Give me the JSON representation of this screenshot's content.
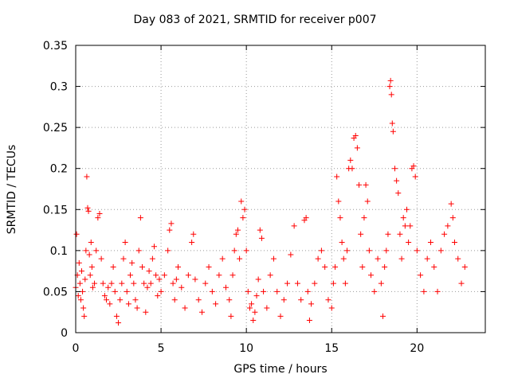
{
  "chart_data": {
    "type": "scatter",
    "title": "Day 083 of 2021, SRMTID for receiver p007",
    "xlabel": "GPS time / hours",
    "ylabel": "SRMTID / TECUs",
    "xlim": [
      0,
      24
    ],
    "ylim": [
      0,
      0.35
    ],
    "xticks": [
      0,
      5,
      10,
      15,
      20
    ],
    "xtick_labels": [
      "0",
      "5",
      "10",
      "15",
      "20"
    ],
    "yticks": [
      0,
      0.05,
      0.1,
      0.15,
      0.2,
      0.25,
      0.3,
      0.35
    ],
    "ytick_labels": [
      "0",
      "0.05",
      "0.1",
      "0.15",
      "0.2",
      "0.25",
      "0.3",
      "0.35"
    ],
    "grid": true,
    "marker": "+",
    "color": "#ff0000",
    "series": [
      {
        "name": "SRMTID",
        "points": [
          [
            0.0,
            0.055
          ],
          [
            0.05,
            0.12
          ],
          [
            0.1,
            0.07
          ],
          [
            0.15,
            0.045
          ],
          [
            0.2,
            0.085
          ],
          [
            0.25,
            0.06
          ],
          [
            0.3,
            0.04
          ],
          [
            0.35,
            0.075
          ],
          [
            0.4,
            0.05
          ],
          [
            0.45,
            0.03
          ],
          [
            0.5,
            0.02
          ],
          [
            0.55,
            0.065
          ],
          [
            0.6,
            0.1
          ],
          [
            0.65,
            0.19
          ],
          [
            0.7,
            0.152
          ],
          [
            0.75,
            0.148
          ],
          [
            0.8,
            0.095
          ],
          [
            0.85,
            0.07
          ],
          [
            0.9,
            0.11
          ],
          [
            0.95,
            0.08
          ],
          [
            1.0,
            0.055
          ],
          [
            1.1,
            0.06
          ],
          [
            1.2,
            0.1
          ],
          [
            1.3,
            0.14
          ],
          [
            1.4,
            0.145
          ],
          [
            1.5,
            0.09
          ],
          [
            1.6,
            0.06
          ],
          [
            1.7,
            0.045
          ],
          [
            1.8,
            0.04
          ],
          [
            1.9,
            0.055
          ],
          [
            2.0,
            0.035
          ],
          [
            2.1,
            0.06
          ],
          [
            2.2,
            0.08
          ],
          [
            2.3,
            0.05
          ],
          [
            2.4,
            0.02
          ],
          [
            2.5,
            0.012
          ],
          [
            2.6,
            0.04
          ],
          [
            2.7,
            0.06
          ],
          [
            2.8,
            0.09
          ],
          [
            2.9,
            0.11
          ],
          [
            3.0,
            0.05
          ],
          [
            3.1,
            0.035
          ],
          [
            3.2,
            0.07
          ],
          [
            3.3,
            0.085
          ],
          [
            3.4,
            0.06
          ],
          [
            3.5,
            0.04
          ],
          [
            3.6,
            0.03
          ],
          [
            3.7,
            0.1
          ],
          [
            3.8,
            0.14
          ],
          [
            3.9,
            0.08
          ],
          [
            4.0,
            0.06
          ],
          [
            4.1,
            0.025
          ],
          [
            4.2,
            0.055
          ],
          [
            4.3,
            0.075
          ],
          [
            4.4,
            0.06
          ],
          [
            4.5,
            0.09
          ],
          [
            4.6,
            0.105
          ],
          [
            4.7,
            0.07
          ],
          [
            4.8,
            0.045
          ],
          [
            4.9,
            0.065
          ],
          [
            5.0,
            0.05
          ],
          [
            5.2,
            0.07
          ],
          [
            5.4,
            0.1
          ],
          [
            5.5,
            0.125
          ],
          [
            5.6,
            0.133
          ],
          [
            5.7,
            0.06
          ],
          [
            5.8,
            0.04
          ],
          [
            5.9,
            0.065
          ],
          [
            6.0,
            0.08
          ],
          [
            6.2,
            0.055
          ],
          [
            6.4,
            0.03
          ],
          [
            6.6,
            0.07
          ],
          [
            6.8,
            0.11
          ],
          [
            6.9,
            0.12
          ],
          [
            7.0,
            0.065
          ],
          [
            7.2,
            0.04
          ],
          [
            7.4,
            0.025
          ],
          [
            7.6,
            0.06
          ],
          [
            7.8,
            0.08
          ],
          [
            8.0,
            0.05
          ],
          [
            8.2,
            0.035
          ],
          [
            8.4,
            0.07
          ],
          [
            8.6,
            0.09
          ],
          [
            8.8,
            0.055
          ],
          [
            9.0,
            0.04
          ],
          [
            9.1,
            0.02
          ],
          [
            9.2,
            0.07
          ],
          [
            9.3,
            0.1
          ],
          [
            9.4,
            0.12
          ],
          [
            9.5,
            0.125
          ],
          [
            9.6,
            0.09
          ],
          [
            9.7,
            0.16
          ],
          [
            9.8,
            0.14
          ],
          [
            9.9,
            0.15
          ],
          [
            10.0,
            0.1
          ],
          [
            10.1,
            0.05
          ],
          [
            10.2,
            0.03
          ],
          [
            10.3,
            0.035
          ],
          [
            10.4,
            0.015
          ],
          [
            10.5,
            0.025
          ],
          [
            10.6,
            0.045
          ],
          [
            10.7,
            0.065
          ],
          [
            10.8,
            0.125
          ],
          [
            10.9,
            0.115
          ],
          [
            11.0,
            0.05
          ],
          [
            11.2,
            0.03
          ],
          [
            11.4,
            0.07
          ],
          [
            11.6,
            0.09
          ],
          [
            11.8,
            0.05
          ],
          [
            12.0,
            0.02
          ],
          [
            12.2,
            0.04
          ],
          [
            12.4,
            0.06
          ],
          [
            12.6,
            0.095
          ],
          [
            12.8,
            0.13
          ],
          [
            13.0,
            0.06
          ],
          [
            13.2,
            0.04
          ],
          [
            13.4,
            0.137
          ],
          [
            13.5,
            0.14
          ],
          [
            13.6,
            0.05
          ],
          [
            13.7,
            0.015
          ],
          [
            13.8,
            0.035
          ],
          [
            14.0,
            0.06
          ],
          [
            14.2,
            0.09
          ],
          [
            14.4,
            0.1
          ],
          [
            14.6,
            0.08
          ],
          [
            14.8,
            0.04
          ],
          [
            15.0,
            0.03
          ],
          [
            15.1,
            0.06
          ],
          [
            15.2,
            0.08
          ],
          [
            15.3,
            0.19
          ],
          [
            15.4,
            0.16
          ],
          [
            15.5,
            0.14
          ],
          [
            15.6,
            0.11
          ],
          [
            15.7,
            0.09
          ],
          [
            15.8,
            0.06
          ],
          [
            15.9,
            0.1
          ],
          [
            16.0,
            0.2
          ],
          [
            16.1,
            0.21
          ],
          [
            16.2,
            0.2
          ],
          [
            16.3,
            0.237
          ],
          [
            16.4,
            0.24
          ],
          [
            16.5,
            0.225
          ],
          [
            16.6,
            0.18
          ],
          [
            16.7,
            0.12
          ],
          [
            16.8,
            0.08
          ],
          [
            16.9,
            0.14
          ],
          [
            17.0,
            0.18
          ],
          [
            17.1,
            0.16
          ],
          [
            17.2,
            0.1
          ],
          [
            17.3,
            0.07
          ],
          [
            17.5,
            0.05
          ],
          [
            17.7,
            0.09
          ],
          [
            17.9,
            0.06
          ],
          [
            18.0,
            0.02
          ],
          [
            18.1,
            0.08
          ],
          [
            18.2,
            0.1
          ],
          [
            18.3,
            0.12
          ],
          [
            18.4,
            0.3
          ],
          [
            18.45,
            0.307
          ],
          [
            18.5,
            0.29
          ],
          [
            18.55,
            0.255
          ],
          [
            18.6,
            0.245
          ],
          [
            18.7,
            0.2
          ],
          [
            18.8,
            0.185
          ],
          [
            18.9,
            0.17
          ],
          [
            19.0,
            0.12
          ],
          [
            19.1,
            0.09
          ],
          [
            19.2,
            0.14
          ],
          [
            19.3,
            0.13
          ],
          [
            19.4,
            0.15
          ],
          [
            19.5,
            0.11
          ],
          [
            19.6,
            0.13
          ],
          [
            19.7,
            0.2
          ],
          [
            19.8,
            0.203
          ],
          [
            19.9,
            0.19
          ],
          [
            20.0,
            0.1
          ],
          [
            20.2,
            0.07
          ],
          [
            20.4,
            0.05
          ],
          [
            20.6,
            0.09
          ],
          [
            20.8,
            0.11
          ],
          [
            21.0,
            0.08
          ],
          [
            21.2,
            0.05
          ],
          [
            21.4,
            0.1
          ],
          [
            21.6,
            0.12
          ],
          [
            21.8,
            0.13
          ],
          [
            22.0,
            0.157
          ],
          [
            22.1,
            0.14
          ],
          [
            22.2,
            0.11
          ],
          [
            22.4,
            0.09
          ],
          [
            22.6,
            0.06
          ],
          [
            22.8,
            0.08
          ]
        ]
      }
    ]
  }
}
